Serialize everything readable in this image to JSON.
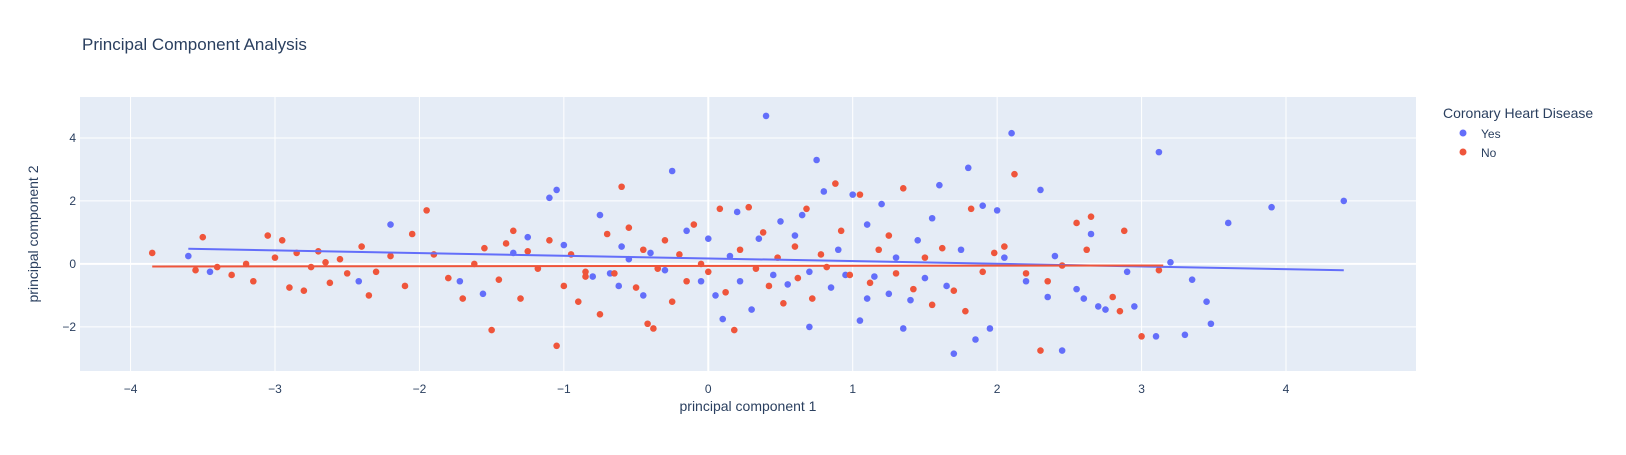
{
  "chart_data": {
    "type": "scatter",
    "title": "Principal Component Analysis",
    "xlabel": "principal component 1",
    "ylabel": "principal component 2",
    "xlim": [
      -4.35,
      4.9
    ],
    "ylim": [
      -3.4,
      5.3
    ],
    "x_ticks": [
      -4,
      -3,
      -2,
      -1,
      0,
      1,
      2,
      3,
      4
    ],
    "y_ticks": [
      -2,
      0,
      2,
      4
    ],
    "x_tick_labels": [
      "−4",
      "−3",
      "−2",
      "−1",
      "0",
      "1",
      "2",
      "3",
      "4"
    ],
    "y_tick_labels": [
      "−2",
      "0",
      "2",
      "4"
    ],
    "grid": true,
    "legend": {
      "title": "Coronary Heart Disease",
      "position": "top-right"
    },
    "series": [
      {
        "name": "Yes",
        "color": "#636efa",
        "trendline": {
          "x": [
            -3.6,
            4.4
          ],
          "y": [
            0.48,
            -0.2
          ]
        },
        "points": [
          [
            -3.6,
            0.25
          ],
          [
            -3.45,
            -0.25
          ],
          [
            -2.42,
            -0.55
          ],
          [
            -2.2,
            1.25
          ],
          [
            -1.72,
            -0.55
          ],
          [
            -1.56,
            -0.95
          ],
          [
            -1.35,
            0.35
          ],
          [
            -1.25,
            0.85
          ],
          [
            -1.1,
            2.1
          ],
          [
            -1.05,
            2.35
          ],
          [
            -1.0,
            0.6
          ],
          [
            -0.8,
            -0.4
          ],
          [
            -0.75,
            1.55
          ],
          [
            -0.68,
            -0.3
          ],
          [
            -0.62,
            -0.7
          ],
          [
            -0.55,
            0.15
          ],
          [
            -0.45,
            -1.0
          ],
          [
            -0.4,
            0.35
          ],
          [
            -0.3,
            -0.2
          ],
          [
            -0.25,
            2.95
          ],
          [
            -0.15,
            1.05
          ],
          [
            -0.05,
            -0.55
          ],
          [
            0.0,
            0.8
          ],
          [
            0.05,
            -1.0
          ],
          [
            0.1,
            -1.75
          ],
          [
            0.15,
            0.25
          ],
          [
            0.22,
            -0.55
          ],
          [
            0.3,
            -1.45
          ],
          [
            0.35,
            0.8
          ],
          [
            0.4,
            4.7
          ],
          [
            0.45,
            -0.35
          ],
          [
            0.5,
            1.35
          ],
          [
            0.55,
            -0.65
          ],
          [
            0.6,
            0.9
          ],
          [
            0.65,
            1.55
          ],
          [
            0.7,
            -0.25
          ],
          [
            0.75,
            3.3
          ],
          [
            0.8,
            2.3
          ],
          [
            0.85,
            -0.75
          ],
          [
            0.9,
            0.45
          ],
          [
            0.95,
            -0.35
          ],
          [
            1.0,
            2.2
          ],
          [
            1.05,
            -1.8
          ],
          [
            1.1,
            1.25
          ],
          [
            1.15,
            -0.4
          ],
          [
            1.2,
            1.9
          ],
          [
            1.25,
            -0.95
          ],
          [
            1.3,
            0.2
          ],
          [
            1.35,
            -2.05
          ],
          [
            1.4,
            -1.15
          ],
          [
            1.45,
            0.75
          ],
          [
            1.5,
            -0.45
          ],
          [
            1.55,
            1.45
          ],
          [
            1.6,
            2.5
          ],
          [
            1.65,
            -0.7
          ],
          [
            1.7,
            -2.85
          ],
          [
            1.75,
            0.45
          ],
          [
            1.8,
            3.05
          ],
          [
            1.85,
            -2.4
          ],
          [
            1.9,
            1.85
          ],
          [
            1.95,
            -2.05
          ],
          [
            2.0,
            1.7
          ],
          [
            2.05,
            0.2
          ],
          [
            2.1,
            4.15
          ],
          [
            2.2,
            -0.55
          ],
          [
            2.3,
            2.35
          ],
          [
            2.35,
            -1.05
          ],
          [
            2.4,
            0.25
          ],
          [
            2.45,
            -2.75
          ],
          [
            2.55,
            -0.8
          ],
          [
            2.6,
            -1.1
          ],
          [
            2.65,
            0.95
          ],
          [
            2.7,
            -1.35
          ],
          [
            2.75,
            -1.45
          ],
          [
            2.9,
            -0.25
          ],
          [
            2.95,
            -1.35
          ],
          [
            3.1,
            -2.3
          ],
          [
            3.12,
            3.55
          ],
          [
            3.2,
            0.05
          ],
          [
            3.3,
            -2.25
          ],
          [
            3.35,
            -0.5
          ],
          [
            3.45,
            -1.2
          ],
          [
            3.48,
            -1.9
          ],
          [
            3.6,
            1.3
          ],
          [
            3.9,
            1.8
          ],
          [
            4.4,
            2.0
          ],
          [
            0.7,
            -2.0
          ],
          [
            1.1,
            -1.1
          ],
          [
            0.2,
            1.65
          ],
          [
            -0.6,
            0.55
          ]
        ]
      },
      {
        "name": "No",
        "color": "#ef553b",
        "trendline": {
          "x": [
            -3.85,
            3.15
          ],
          "y": [
            -0.08,
            -0.05
          ]
        },
        "points": [
          [
            -3.85,
            0.35
          ],
          [
            -3.55,
            -0.2
          ],
          [
            -3.5,
            0.85
          ],
          [
            -3.4,
            -0.1
          ],
          [
            -3.3,
            -0.35
          ],
          [
            -3.2,
            0.0
          ],
          [
            -3.15,
            -0.55
          ],
          [
            -3.05,
            0.9
          ],
          [
            -3.0,
            0.2
          ],
          [
            -2.95,
            0.75
          ],
          [
            -2.9,
            -0.75
          ],
          [
            -2.85,
            0.35
          ],
          [
            -2.8,
            -0.85
          ],
          [
            -2.75,
            -0.1
          ],
          [
            -2.7,
            0.4
          ],
          [
            -2.62,
            -0.6
          ],
          [
            -2.55,
            0.15
          ],
          [
            -2.5,
            -0.3
          ],
          [
            -2.4,
            0.55
          ],
          [
            -2.35,
            -1.0
          ],
          [
            -2.3,
            -0.25
          ],
          [
            -2.2,
            0.25
          ],
          [
            -2.1,
            -0.7
          ],
          [
            -2.05,
            0.95
          ],
          [
            -1.95,
            1.7
          ],
          [
            -1.9,
            0.3
          ],
          [
            -1.8,
            -0.45
          ],
          [
            -1.7,
            -1.1
          ],
          [
            -1.62,
            0.0
          ],
          [
            -1.55,
            0.5
          ],
          [
            -1.5,
            -2.1
          ],
          [
            -1.45,
            -0.5
          ],
          [
            -1.4,
            0.65
          ],
          [
            -1.3,
            -1.1
          ],
          [
            -1.25,
            0.4
          ],
          [
            -1.18,
            -0.15
          ],
          [
            -1.1,
            0.75
          ],
          [
            -1.05,
            -2.6
          ],
          [
            -1.0,
            -0.7
          ],
          [
            -0.95,
            0.3
          ],
          [
            -0.9,
            -1.2
          ],
          [
            -0.85,
            -0.4
          ],
          [
            -0.75,
            -1.6
          ],
          [
            -0.7,
            0.95
          ],
          [
            -0.65,
            -0.3
          ],
          [
            -0.6,
            2.45
          ],
          [
            -0.55,
            1.15
          ],
          [
            -0.5,
            -0.75
          ],
          [
            -0.45,
            0.45
          ],
          [
            -0.42,
            -1.9
          ],
          [
            -0.38,
            -2.05
          ],
          [
            -0.35,
            -0.15
          ],
          [
            -0.3,
            0.75
          ],
          [
            -0.25,
            -1.2
          ],
          [
            -0.2,
            0.3
          ],
          [
            -0.15,
            -0.55
          ],
          [
            -0.1,
            1.25
          ],
          [
            -0.05,
            0.0
          ],
          [
            0.0,
            -0.25
          ],
          [
            0.08,
            1.75
          ],
          [
            0.12,
            -0.9
          ],
          [
            0.18,
            -2.1
          ],
          [
            0.22,
            0.45
          ],
          [
            0.28,
            1.8
          ],
          [
            0.33,
            -0.15
          ],
          [
            0.38,
            1.0
          ],
          [
            0.42,
            -0.7
          ],
          [
            0.48,
            0.2
          ],
          [
            0.52,
            -1.25
          ],
          [
            0.6,
            0.55
          ],
          [
            0.62,
            -0.45
          ],
          [
            0.68,
            1.75
          ],
          [
            0.72,
            -1.1
          ],
          [
            0.78,
            0.3
          ],
          [
            0.82,
            -0.1
          ],
          [
            0.88,
            2.55
          ],
          [
            0.92,
            1.05
          ],
          [
            0.98,
            -0.35
          ],
          [
            1.05,
            2.2
          ],
          [
            1.12,
            -0.6
          ],
          [
            1.18,
            0.45
          ],
          [
            1.25,
            0.9
          ],
          [
            1.3,
            -0.3
          ],
          [
            1.35,
            2.4
          ],
          [
            1.42,
            -0.8
          ],
          [
            1.5,
            0.2
          ],
          [
            1.55,
            -1.3
          ],
          [
            1.62,
            0.5
          ],
          [
            1.7,
            -0.85
          ],
          [
            1.78,
            -1.5
          ],
          [
            1.82,
            1.75
          ],
          [
            1.9,
            -0.25
          ],
          [
            1.98,
            0.35
          ],
          [
            2.05,
            0.55
          ],
          [
            2.12,
            2.85
          ],
          [
            2.2,
            -0.3
          ],
          [
            2.3,
            -2.75
          ],
          [
            2.35,
            -0.55
          ],
          [
            2.45,
            -0.05
          ],
          [
            2.55,
            1.3
          ],
          [
            2.62,
            0.45
          ],
          [
            2.65,
            1.5
          ],
          [
            2.8,
            -1.05
          ],
          [
            2.85,
            -1.5
          ],
          [
            2.88,
            1.05
          ],
          [
            3.0,
            -2.3
          ],
          [
            3.12,
            -0.2
          ],
          [
            -2.65,
            0.05
          ],
          [
            -1.35,
            1.05
          ],
          [
            -0.85,
            -0.25
          ]
        ]
      }
    ]
  }
}
